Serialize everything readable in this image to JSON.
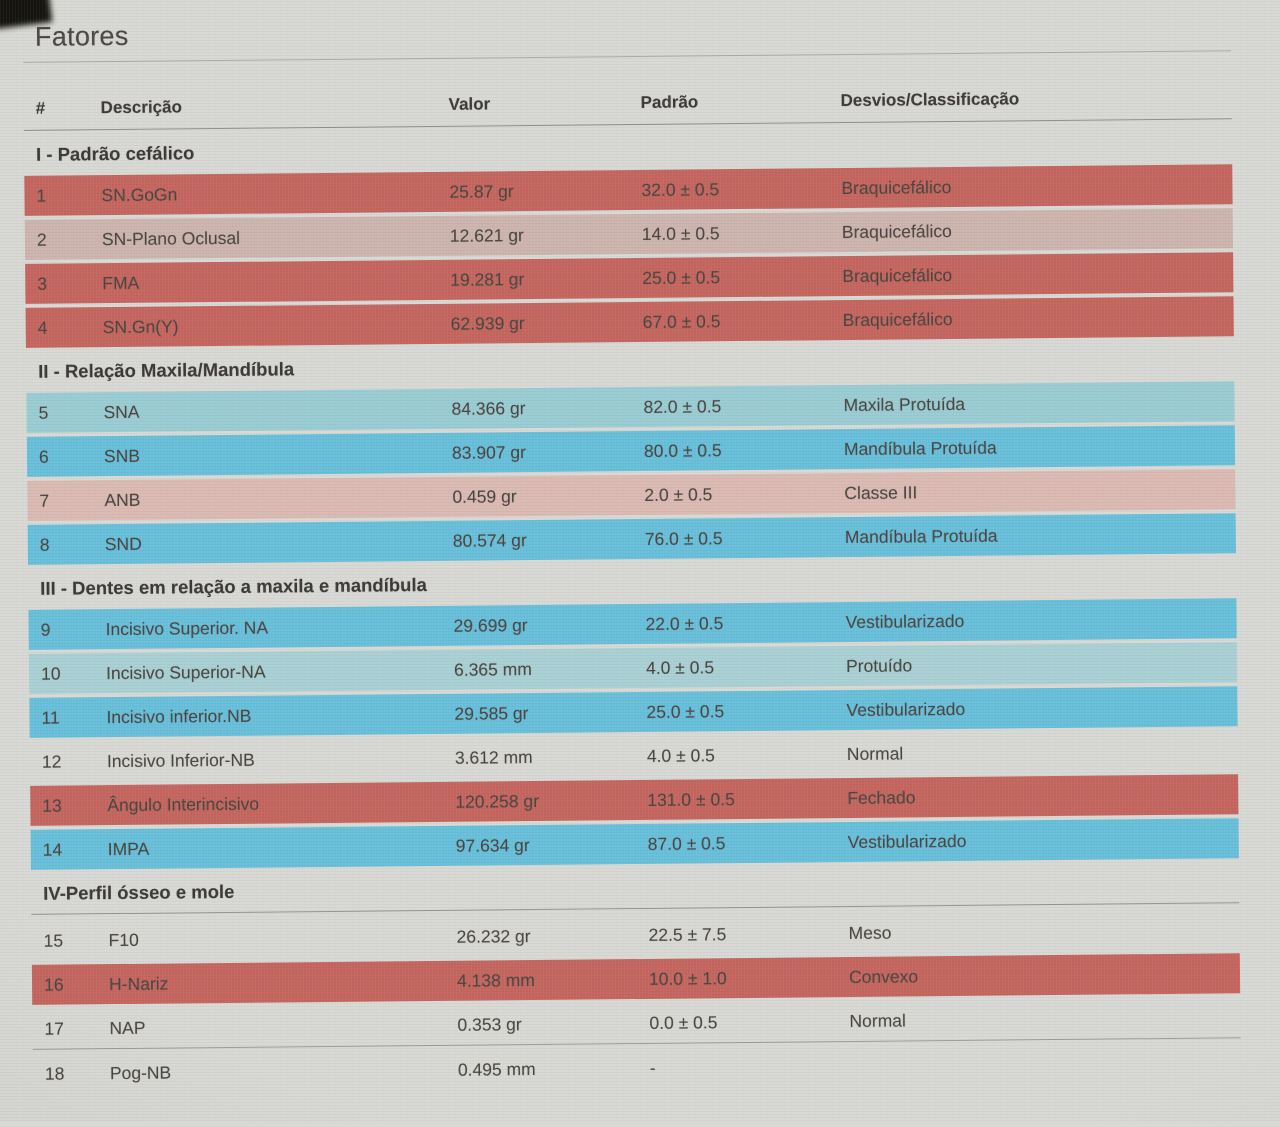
{
  "page": {
    "title": "Fatores"
  },
  "table": {
    "columns": {
      "num": "#",
      "desc": "Descrição",
      "valor": "Valor",
      "padrao": "Padrão",
      "classif": "Desvios/Classificação"
    },
    "sections": [
      {
        "title": "I - Padrão cefálico",
        "underline": false,
        "rows": [
          {
            "num": "1",
            "desc": "SN.GoGn",
            "valor": "25.87 gr",
            "padrao": "32.0 ± 0.5",
            "classif": "Braquicefálico",
            "tone": "red"
          },
          {
            "num": "2",
            "desc": "SN-Plano Oclusal",
            "valor": "12.621 gr",
            "padrao": "14.0 ± 0.5",
            "classif": "Braquicefálico",
            "tone": "pink"
          },
          {
            "num": "3",
            "desc": "FMA",
            "valor": "19.281 gr",
            "padrao": "25.0 ± 0.5",
            "classif": "Braquicefálico",
            "tone": "red"
          },
          {
            "num": "4",
            "desc": "SN.Gn(Y)",
            "valor": "62.939 gr",
            "padrao": "67.0 ± 0.5",
            "classif": "Braquicefálico",
            "tone": "red"
          }
        ]
      },
      {
        "title": "II - Relação Maxila/Mandíbula",
        "underline": false,
        "rows": [
          {
            "num": "5",
            "desc": "SNA",
            "valor": "84.366 gr",
            "padrao": "82.0 ± 0.5",
            "classif": "Maxila Protuída",
            "tone": "teal"
          },
          {
            "num": "6",
            "desc": "SNB",
            "valor": "83.907 gr",
            "padrao": "80.0 ± 0.5",
            "classif": "Mandíbula Protuída",
            "tone": "cyan"
          },
          {
            "num": "7",
            "desc": "ANB",
            "valor": "0.459 gr",
            "padrao": "2.0 ± 0.5",
            "classif": "Classe III",
            "tone": "rose"
          },
          {
            "num": "8",
            "desc": "SND",
            "valor": "80.574 gr",
            "padrao": "76.0 ± 0.5",
            "classif": "Mandíbula Protuída",
            "tone": "cyan"
          }
        ]
      },
      {
        "title": "III - Dentes em relação a maxila e mandíbula",
        "underline": false,
        "rows": [
          {
            "num": "9",
            "desc": "Incisivo Superior. NA",
            "valor": "29.699 gr",
            "padrao": "22.0 ± 0.5",
            "classif": "Vestibularizado",
            "tone": "cyan"
          },
          {
            "num": "10",
            "desc": "Incisivo Superior-NA",
            "valor": "6.365 mm",
            "padrao": "4.0 ± 0.5",
            "classif": "Protuído",
            "tone": "teal2"
          },
          {
            "num": "11",
            "desc": "Incisivo inferior.NB",
            "valor": "29.585 gr",
            "padrao": "25.0 ± 0.5",
            "classif": "Vestibularizado",
            "tone": "cyan"
          },
          {
            "num": "12",
            "desc": "Incisivo Inferior-NB",
            "valor": "3.612 mm",
            "padrao": "4.0 ± 0.5",
            "classif": "Normal",
            "tone": "none"
          },
          {
            "num": "13",
            "desc": "Ângulo Interincisivo",
            "valor": "120.258 gr",
            "padrao": "131.0 ± 0.5",
            "classif": "Fechado",
            "tone": "red"
          },
          {
            "num": "14",
            "desc": "IMPA",
            "valor": "97.634 gr",
            "padrao": "87.0 ± 0.5",
            "classif": "Vestibularizado",
            "tone": "cyan"
          }
        ]
      },
      {
        "title": "IV-Perfil ósseo e mole",
        "underline": true,
        "rows": [
          {
            "num": "15",
            "desc": "F10",
            "valor": "26.232 gr",
            "padrao": "22.5 ± 7.5",
            "classif": "Meso",
            "tone": "none"
          },
          {
            "num": "16",
            "desc": "H-Nariz",
            "valor": "4.138 mm",
            "padrao": "10.0 ± 1.0",
            "classif": "Convexo",
            "tone": "red"
          },
          {
            "num": "17",
            "desc": "NAP",
            "valor": "0.353 gr",
            "padrao": "0.0 ± 0.5",
            "classif": "Normal",
            "tone": "none",
            "divider": true
          },
          {
            "num": "18",
            "desc": "Pog-NB",
            "valor": "0.495 mm",
            "padrao": "-",
            "classif": "",
            "tone": "none"
          }
        ]
      }
    ]
  },
  "colors": {
    "red": "#c4665f",
    "pink": "#cdb5ae",
    "rose": "#dbbab3",
    "cyan": "#68bfda",
    "teal": "#9accd3",
    "teal2": "#a9d0d4",
    "none": "transparent"
  }
}
